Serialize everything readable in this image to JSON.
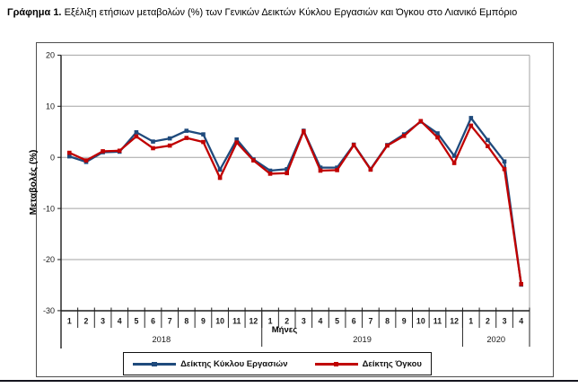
{
  "page": {
    "title_prefix": "Γράφημα 1.",
    "title_rest": "Εξέλιξη ετήσιων μεταβολών (%) των Γενικών Δεικτών Κύκλου Εργασιών και Όγκου στο Λιανικό Εμπόριο"
  },
  "chart_data": {
    "type": "line",
    "title": "",
    "ylabel": "Μεταβολές (%)",
    "xlabel": "Μήνες",
    "ylim": [
      -30,
      20
    ],
    "yticks": [
      20,
      10,
      0,
      -10,
      -20,
      -30
    ],
    "grid": true,
    "legend_position": "bottom",
    "year_groups": [
      {
        "label": "2018",
        "count": 12
      },
      {
        "label": "2019",
        "count": 12
      },
      {
        "label": "2020",
        "count": 4
      }
    ],
    "categories": [
      "1",
      "2",
      "3",
      "4",
      "5",
      "6",
      "7",
      "8",
      "9",
      "10",
      "11",
      "12",
      "1",
      "2",
      "3",
      "4",
      "5",
      "6",
      "7",
      "8",
      "9",
      "10",
      "11",
      "12",
      "1",
      "2",
      "3",
      "4"
    ],
    "series": [
      {
        "name": "Δείκτης Κύκλου Εργασιών",
        "color": "#1F4A7C",
        "marker": "square",
        "values": [
          0.2,
          -0.9,
          1.0,
          1.1,
          4.9,
          3.1,
          3.7,
          5.2,
          4.5,
          -2.4,
          3.5,
          -0.4,
          -2.6,
          -2.3,
          5.2,
          -2.0,
          -2.0,
          2.5,
          -2.3,
          2.4,
          4.5,
          7.0,
          4.7,
          0.3,
          7.7,
          3.4,
          -0.8,
          -24.9
        ]
      },
      {
        "name": "Δείκτης Όγκου",
        "color": "#C00000",
        "marker": "square",
        "values": [
          0.9,
          -0.6,
          1.2,
          1.3,
          4.1,
          1.8,
          2.3,
          3.8,
          3.0,
          -4.0,
          2.9,
          -0.6,
          -3.2,
          -3.1,
          5.1,
          -2.6,
          -2.5,
          2.4,
          -2.4,
          2.3,
          4.2,
          7.1,
          3.9,
          -1.1,
          6.2,
          2.2,
          -2.3,
          -24.8
        ]
      }
    ]
  },
  "colors": {
    "axis": "#1a1a1a",
    "grid": "#a3a3a3",
    "tick_text": "#1a1a1a",
    "box_border": "#4d4d4d"
  }
}
